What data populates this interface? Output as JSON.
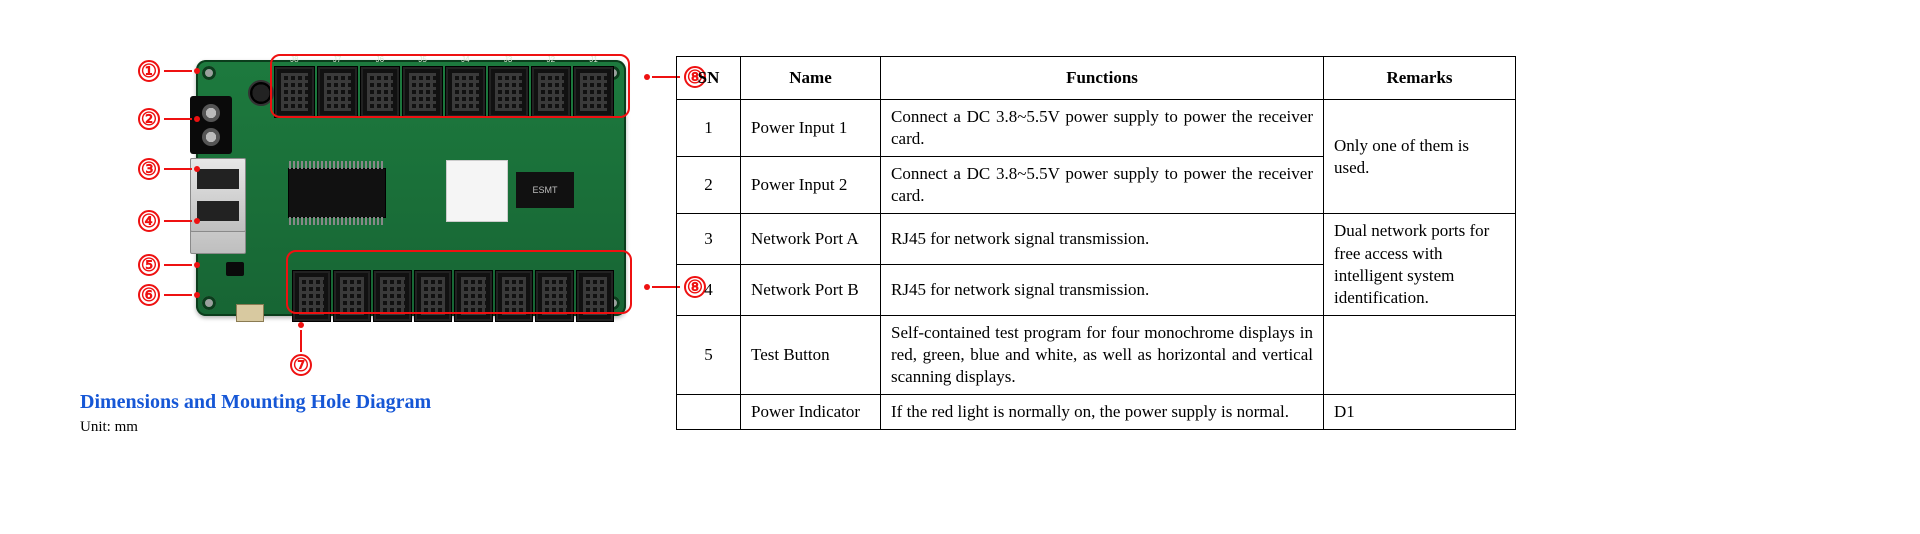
{
  "diagram": {
    "callouts": [
      "①",
      "②",
      "③",
      "④",
      "⑤",
      "⑥",
      "⑦",
      "⑧",
      "⑧"
    ],
    "header_labels_top": [
      "J8",
      "J7",
      "J6",
      "J5",
      "J4",
      "J3",
      "J2",
      "J1"
    ],
    "mem_label": "ESMT",
    "section_heading": "Dimensions and Mounting Hole Diagram",
    "unit": "Unit: mm"
  },
  "table": {
    "headers": {
      "sn": "SN",
      "name": "Name",
      "func": "Functions",
      "rem": "Remarks"
    },
    "rows": [
      {
        "sn": "1",
        "name": "Power Input 1",
        "func": "Connect a DC 3.8~5.5V power supply to power the receiver card.",
        "rem": "Only one of them is used.",
        "rem_rowspan": 2
      },
      {
        "sn": "2",
        "name": "Power Input 2",
        "func": "Connect a DC 3.8~5.5V power supply to power the receiver card."
      },
      {
        "sn": "3",
        "name": "Network Port A",
        "func": "RJ45 for network signal transmission.",
        "rem": "Dual network ports for free access with intelligent system identification.",
        "rem_rowspan": 2
      },
      {
        "sn": "4",
        "name": "Network Port B",
        "func": "RJ45 for network signal transmission."
      },
      {
        "sn": "5",
        "name": "Test Button",
        "func": "Self-contained test program for four monochrome displays in red, green, blue and white, as well as horizontal and vertical scanning displays.",
        "rem": ""
      },
      {
        "sn": "",
        "name": "Power Indicator",
        "func": "If the red light is normally on, the power supply is normal.",
        "rem": "D1"
      }
    ]
  }
}
